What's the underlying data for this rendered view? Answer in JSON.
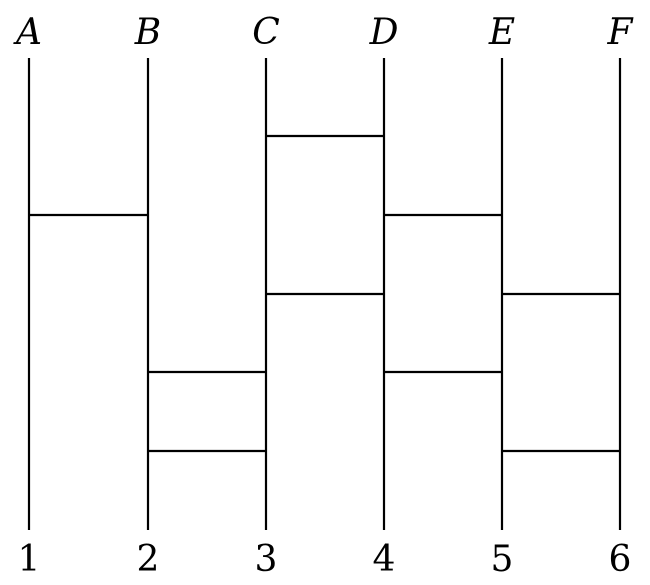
{
  "ladder": {
    "top_labels": [
      "A",
      "B",
      "C",
      "D",
      "E",
      "F"
    ],
    "bottom_labels": [
      "1",
      "2",
      "3",
      "4",
      "5",
      "6"
    ],
    "rungs": [
      {
        "from": 1,
        "to": 2,
        "level": 2
      },
      {
        "from": 2,
        "to": 3,
        "level": 4
      },
      {
        "from": 2,
        "to": 3,
        "level": 5
      },
      {
        "from": 3,
        "to": 4,
        "level": 1
      },
      {
        "from": 3,
        "to": 4,
        "level": 3
      },
      {
        "from": 4,
        "to": 5,
        "level": 2
      },
      {
        "from": 4,
        "to": 5,
        "level": 4
      },
      {
        "from": 5,
        "to": 6,
        "level": 3
      },
      {
        "from": 5,
        "to": 6,
        "level": 5
      }
    ]
  }
}
